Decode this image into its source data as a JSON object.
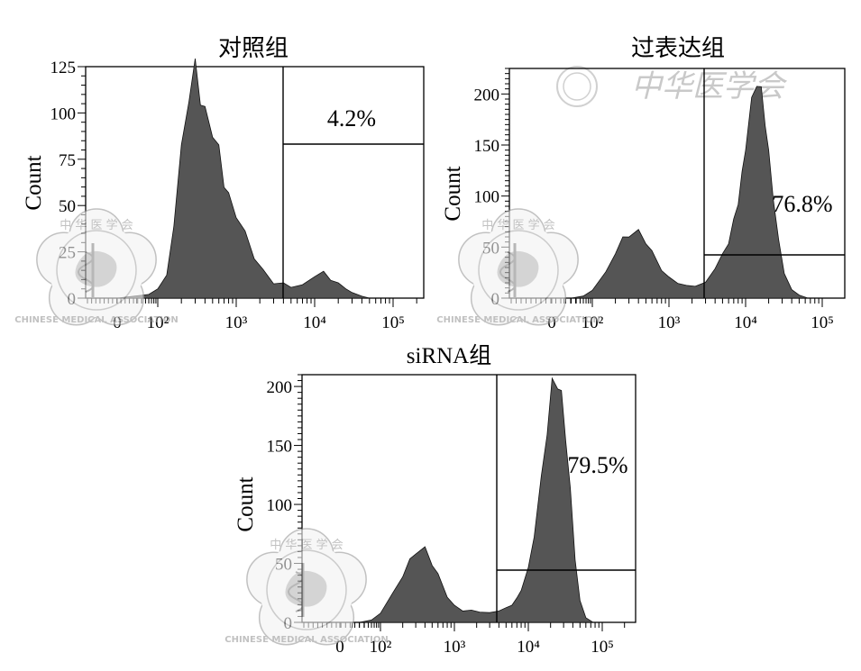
{
  "chart_data": [
    {
      "type": "area",
      "title": "对照组",
      "ylabel": "Count",
      "xlabel": "",
      "x_scale": "log",
      "ylim": [
        0,
        125
      ],
      "y_ticks": [
        0,
        25,
        50,
        75,
        100,
        125
      ],
      "x_tick_labels": [
        "0",
        "10²",
        "10³",
        "10⁴",
        "10⁵"
      ],
      "gate_label": "4.2%",
      "gate_start_x": 3500,
      "series": [
        {
          "x": [
            10,
            60,
            100,
            130,
            160,
            200,
            250,
            300,
            350,
            400,
            500,
            600,
            700,
            800,
            1000,
            1300,
            1700,
            2200,
            3000,
            4000,
            5000,
            7000,
            10000,
            13000,
            16000,
            20000,
            25000,
            30000,
            40000,
            50000
          ],
          "y": [
            0,
            2,
            5,
            12,
            40,
            80,
            110,
            125,
            108,
            100,
            90,
            80,
            62,
            55,
            45,
            35,
            22,
            15,
            8,
            8,
            6,
            7,
            12,
            14,
            10,
            8,
            5,
            3,
            1,
            0
          ]
        }
      ]
    },
    {
      "type": "area",
      "title": "过表达组",
      "ylabel": "Count",
      "xlabel": "",
      "x_scale": "log",
      "ylim": [
        0,
        225
      ],
      "y_ticks": [
        0,
        50,
        100,
        150,
        200
      ],
      "x_tick_labels": [
        "0",
        "10²",
        "10³",
        "10⁴",
        "10⁵"
      ],
      "gate_label": "76.8%",
      "gate_start_x": 3500,
      "series": [
        {
          "x": [
            30,
            60,
            100,
            150,
            200,
            250,
            300,
            400,
            500,
            600,
            800,
            1000,
            1300,
            1700,
            2200,
            3000,
            4000,
            5000,
            6000,
            7000,
            8000,
            9000,
            10000,
            12000,
            14000,
            16000,
            18000,
            20000,
            23000,
            27000,
            32000,
            40000,
            50000,
            65000
          ],
          "y": [
            0,
            2,
            8,
            25,
            45,
            58,
            62,
            65,
            55,
            45,
            28,
            20,
            15,
            12,
            12,
            15,
            30,
            42,
            55,
            75,
            95,
            120,
            150,
            190,
            215,
            200,
            175,
            140,
            100,
            55,
            25,
            8,
            3,
            0
          ]
        }
      ]
    },
    {
      "type": "area",
      "title": "siRNA组",
      "ylabel": "Count",
      "xlabel": "",
      "x_scale": "log",
      "ylim": [
        0,
        210
      ],
      "y_ticks": [
        0,
        50,
        100,
        150,
        200
      ],
      "x_tick_labels": [
        "0",
        "10²",
        "10³",
        "10⁴",
        "10⁵"
      ],
      "gate_label": "79.5%",
      "gate_start_x": 3500,
      "series": [
        {
          "x": [
            30,
            60,
            100,
            150,
            200,
            250,
            300,
            400,
            500,
            600,
            800,
            1000,
            1300,
            1700,
            2200,
            3000,
            4000,
            5000,
            6000,
            7000,
            8000,
            10000,
            12000,
            15000,
            18000,
            21000,
            25000,
            28000,
            32000,
            37000,
            43000,
            50000,
            60000,
            75000
          ],
          "y": [
            0,
            2,
            8,
            25,
            40,
            52,
            60,
            62,
            50,
            40,
            22,
            14,
            10,
            10,
            9,
            8,
            10,
            12,
            15,
            20,
            28,
            45,
            75,
            120,
            165,
            200,
            205,
            190,
            160,
            110,
            55,
            18,
            4,
            0
          ]
        }
      ]
    }
  ],
  "watermark": {
    "seal_top_text": "中 华 医 学 会",
    "seal_bottom_text": "CHINESE MEDICAL ASSOCIATION",
    "script_text": "中华医学会"
  }
}
